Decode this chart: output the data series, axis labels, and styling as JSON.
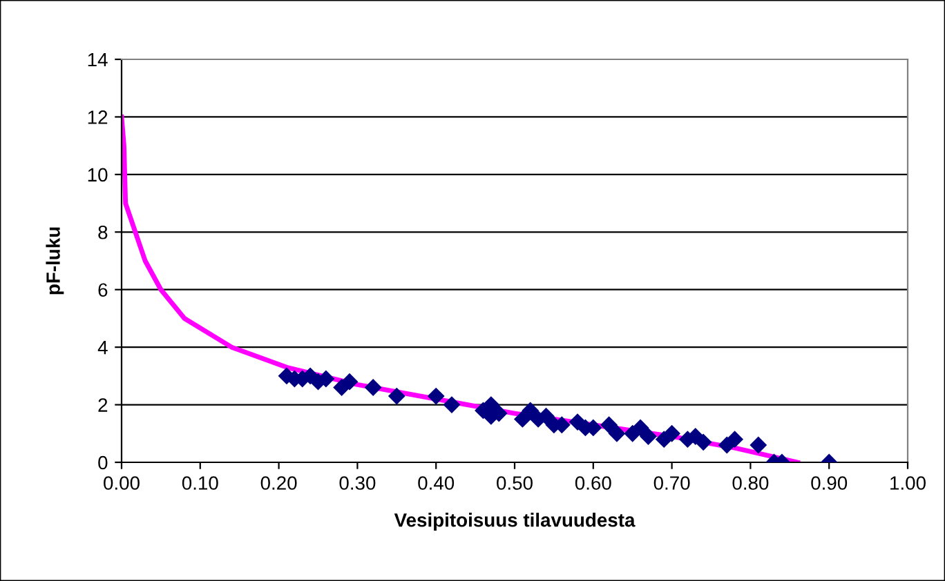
{
  "chart_data": {
    "type": "scatter",
    "xlabel": "Vesipitoisuus tilavuudesta",
    "ylabel": "pF-luku",
    "xlim": [
      0,
      1
    ],
    "xticks": [
      {
        "value": 0,
        "label": "0.00"
      },
      {
        "value": 0.1,
        "label": "0.10"
      },
      {
        "value": 0.2,
        "label": "0.20"
      },
      {
        "value": 0.3,
        "label": "0.30"
      },
      {
        "value": 0.4,
        "label": "0.40"
      },
      {
        "value": 0.5,
        "label": "0.50"
      },
      {
        "value": 0.6,
        "label": "0.60"
      },
      {
        "value": 0.7,
        "label": "0.70"
      },
      {
        "value": 0.8,
        "label": "0.80"
      },
      {
        "value": 0.9,
        "label": "0.90"
      },
      {
        "value": 1,
        "label": "1.00"
      }
    ],
    "ylim": [
      0,
      14
    ],
    "yticks": [
      0,
      2,
      4,
      6,
      8,
      10,
      12,
      14
    ],
    "grid": "y",
    "series": [
      {
        "type": "line",
        "color": "#ff00ff",
        "marker": "none",
        "line_style": "solid",
        "x": [
          0,
          0.003,
          0.005,
          0.03,
          0.05,
          0.08,
          0.14,
          0.21,
          0.3,
          0.4,
          0.5,
          0.6,
          0.7,
          0.78,
          0.86
        ],
        "values": [
          12,
          11,
          9,
          7,
          6,
          5,
          4,
          3.3,
          2.7,
          2.2,
          1.7,
          1.3,
          0.9,
          0.5,
          0
        ]
      },
      {
        "color": "#000080",
        "marker": "diamond",
        "x": [
          0.21,
          0.22,
          0.23,
          0.24,
          0.25,
          0.26,
          0.28,
          0.29,
          0.32,
          0.35,
          0.4,
          0.42,
          0.46,
          0.47,
          0.47,
          0.48,
          0.51,
          0.52,
          0.53,
          0.54,
          0.55,
          0.56,
          0.58,
          0.59,
          0.6,
          0.62,
          0.63,
          0.65,
          0.66,
          0.67,
          0.69,
          0.7,
          0.72,
          0.73,
          0.74,
          0.77,
          0.78,
          0.81,
          0.83,
          0.84,
          0.9
        ],
        "values": [
          3,
          2.9,
          2.9,
          3,
          2.8,
          2.9,
          2.6,
          2.8,
          2.6,
          2.3,
          2.3,
          2,
          1.8,
          1.6,
          2,
          1.7,
          1.5,
          1.8,
          1.5,
          1.6,
          1.3,
          1.3,
          1.4,
          1.2,
          1.2,
          1.3,
          1,
          1,
          1.2,
          0.9,
          0.8,
          1,
          0.8,
          0.9,
          0.7,
          0.6,
          0.8,
          0.6,
          0,
          0,
          0
        ]
      }
    ]
  }
}
